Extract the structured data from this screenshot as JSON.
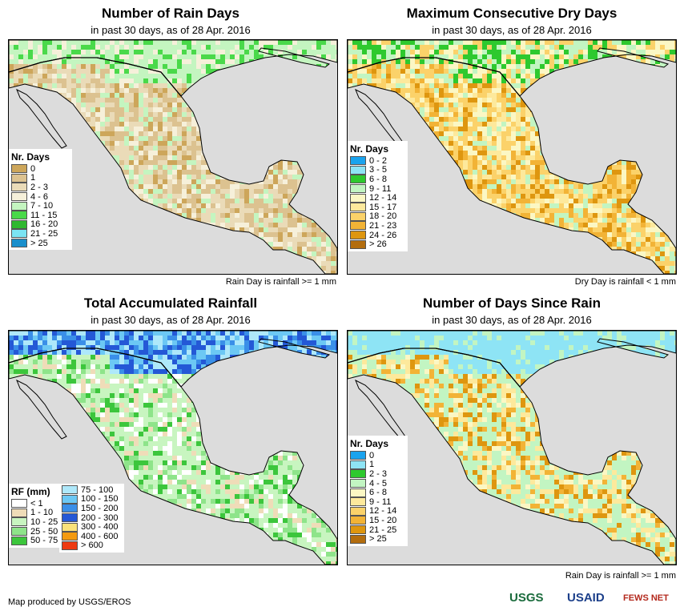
{
  "panels": [
    {
      "title": "Number of Rain Days",
      "subtitle": "in past 30 days, as of 28 Apr. 2016",
      "legend_title": "Nr. Days",
      "legend": [
        {
          "label": "0",
          "color": "#cda65a"
        },
        {
          "label": "1",
          "color": "#dcc290"
        },
        {
          "label": "2 - 3",
          "color": "#eadbb8"
        },
        {
          "label": "4 - 6",
          "color": "#f6f0da"
        },
        {
          "label": "7 - 10",
          "color": "#c4f5c0"
        },
        {
          "label": "11 - 15",
          "color": "#4ad94a"
        },
        {
          "label": "16 - 20",
          "color": "#2fb82f"
        },
        {
          "label": "21 - 25",
          "color": "#7be4f3"
        },
        {
          "label": "> 25",
          "color": "#1a8fcc"
        }
      ],
      "note": "Rain Day is rainfall >= 1 mm",
      "palette": [
        "#dcc290",
        "#eadbb8",
        "#cda65a",
        "#f6f0da",
        "#eadbb8",
        "#c4f5c0",
        "#dcc290"
      ],
      "north_palette": [
        "#c4f5c0",
        "#c4f5c0",
        "#4ad94a",
        "#f6f0da"
      ]
    },
    {
      "title": "Maximum Consecutive Dry Days",
      "subtitle": "in past 30 days, as of 28 Apr. 2016",
      "legend_title": "Nr. Days",
      "legend": [
        {
          "label": "0 - 2",
          "color": "#1aa3ee"
        },
        {
          "label": "3 - 5",
          "color": "#8ee4f5"
        },
        {
          "label": "6 - 8",
          "color": "#2ec92e"
        },
        {
          "label": "9 - 11",
          "color": "#c2f5c2"
        },
        {
          "label": "12 - 14",
          "color": "#fbf7c4"
        },
        {
          "label": "15 - 17",
          "color": "#fde99c"
        },
        {
          "label": "18 - 20",
          "color": "#fbd26a"
        },
        {
          "label": "21 - 23",
          "color": "#f2b336"
        },
        {
          "label": "24 - 26",
          "color": "#de960f"
        },
        {
          "label": "> 26",
          "color": "#b36d0e"
        }
      ],
      "note": "Dry Day is rainfall < 1 mm",
      "palette": [
        "#fbd26a",
        "#f2b336",
        "#fde99c",
        "#fbd26a",
        "#de960f",
        "#fbf7c4",
        "#c2f5c2"
      ],
      "north_palette": [
        "#c2f5c2",
        "#2ec92e",
        "#fbd26a",
        "#fbf7c4"
      ]
    },
    {
      "title": "Total Accumulated Rainfall",
      "subtitle": "in past 30 days, as of 28 Apr. 2016",
      "legend_title": "RF (mm)",
      "legend": [
        {
          "label": "< 1",
          "color": "#ffffff"
        },
        {
          "label": "1 - 10",
          "color": "#efdcb8"
        },
        {
          "label": "10 - 25",
          "color": "#c8f5c0"
        },
        {
          "label": "25 - 50",
          "color": "#8ee48a"
        },
        {
          "label": "50 - 75",
          "color": "#3cc63c"
        }
      ],
      "legend2": [
        {
          "label": "75 - 100",
          "color": "#aee8fa"
        },
        {
          "label": "100 - 150",
          "color": "#6cc8f4"
        },
        {
          "label": "150 - 200",
          "color": "#3a8fe8"
        },
        {
          "label": "200 - 300",
          "color": "#2458d6"
        },
        {
          "label": "300 - 400",
          "color": "#fbe27a"
        },
        {
          "label": "400 - 600",
          "color": "#f39a10"
        },
        {
          "label": "> 600",
          "color": "#ee3a12"
        }
      ],
      "note": "",
      "palette": [
        "#c8f5c0",
        "#ffffff",
        "#8ee48a",
        "#c8f5c0",
        "#efdcb8",
        "#c8f5c0",
        "#3cc63c"
      ],
      "north_palette": [
        "#3a8fe8",
        "#6cc8f4",
        "#2458d6",
        "#aee8fa"
      ]
    },
    {
      "title": "Number of Days Since Rain",
      "subtitle": "in past 30 days, as of 28 Apr. 2016",
      "legend_title": "Nr. Days",
      "legend": [
        {
          "label": "0",
          "color": "#1aa3ee"
        },
        {
          "label": "1",
          "color": "#8ee4f5"
        },
        {
          "label": "2 - 3",
          "color": "#2ec92e"
        },
        {
          "label": "4 - 5",
          "color": "#c2f5c2"
        },
        {
          "label": "6 - 8",
          "color": "#fbf7c4"
        },
        {
          "label": "9 - 11",
          "color": "#fde99c"
        },
        {
          "label": "12 - 14",
          "color": "#fbd26a"
        },
        {
          "label": "15 - 20",
          "color": "#f2b336"
        },
        {
          "label": "21 - 25",
          "color": "#de960f"
        },
        {
          "label": "> 25",
          "color": "#b36d0e"
        }
      ],
      "note": "Rain Day is rainfall >= 1 mm",
      "palette": [
        "#c2f5c2",
        "#fbf7c4",
        "#c2f5c2",
        "#f2b336",
        "#fde99c",
        "#c2f5c2",
        "#de960f"
      ],
      "north_palette": [
        "#8ee4f5",
        "#8ee4f5",
        "#8ee4f5",
        "#c2f5c2"
      ]
    }
  ],
  "footer": "Map produced by USGS/EROS",
  "logos": [
    "USGS",
    "USAID",
    "FEWS NET"
  ],
  "colors": {
    "ocean": "#dcdcdc",
    "us_outline": "#000000"
  }
}
